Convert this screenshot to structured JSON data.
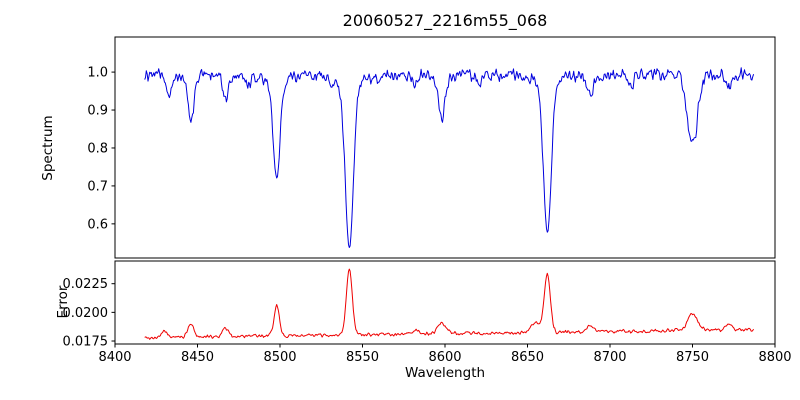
{
  "chart_data": [
    {
      "type": "line",
      "panel": "spectrum",
      "title": "20060527_2216m55_068",
      "ylabel": "Spectrum",
      "color": "#0000dd",
      "line_width": 1,
      "xlim": [
        8400,
        8800
      ],
      "ylim": [
        0.51,
        1.0925
      ],
      "yticks": [
        1.0,
        0.9,
        0.8,
        0.7,
        0.6
      ],
      "ytick_labels": [
        "1.0",
        "0.9",
        "0.8",
        "0.7",
        "0.6"
      ],
      "xticks": [
        8400,
        8450,
        8500,
        8550,
        8600,
        8650,
        8700,
        8750,
        8800
      ],
      "xtick_labels": [
        "8400",
        "8450",
        "8500",
        "8550",
        "8600",
        "8650",
        "8700",
        "8750",
        "8800"
      ],
      "grid": false,
      "legend": "none",
      "x_start": 8418,
      "x_end": 8787,
      "x_step": 0.5,
      "continuum": 0.993,
      "noise_amplitude": 0.02,
      "noise_seed": 12,
      "absorption_lines": [
        {
          "center": 8433,
          "depth": 0.05,
          "width": 1.5
        },
        {
          "center": 8446,
          "depth": 0.115,
          "width": 1.8
        },
        {
          "center": 8467,
          "depth": 0.06,
          "width": 1.8
        },
        {
          "center": 8481,
          "depth": 0.028,
          "width": 1.4
        },
        {
          "center": 8498,
          "depth": 0.26,
          "width": 2.0
        },
        {
          "center": 8498,
          "depth": 0.02,
          "width": 6.0
        },
        {
          "center": 8542,
          "depth": 0.43,
          "width": 2.4
        },
        {
          "center": 8542,
          "depth": 0.03,
          "width": 9.0
        },
        {
          "center": 8582,
          "depth": 0.03,
          "width": 1.5
        },
        {
          "center": 8598,
          "depth": 0.112,
          "width": 2.2
        },
        {
          "center": 8621,
          "depth": 0.028,
          "width": 1.5
        },
        {
          "center": 8662,
          "depth": 0.39,
          "width": 2.3
        },
        {
          "center": 8662,
          "depth": 0.025,
          "width": 9.0
        },
        {
          "center": 8688,
          "depth": 0.05,
          "width": 1.8
        },
        {
          "center": 8713,
          "depth": 0.025,
          "width": 1.5
        },
        {
          "center": 8750,
          "depth": 0.185,
          "width": 3.0
        },
        {
          "center": 8772,
          "depth": 0.035,
          "width": 1.6
        }
      ]
    },
    {
      "type": "line",
      "panel": "error",
      "ylabel": "Error",
      "xlabel": "Wavelength",
      "color": "#ee0000",
      "line_width": 1,
      "xlim": [
        8400,
        8800
      ],
      "ylim": [
        0.01724,
        0.02448
      ],
      "yticks": [
        0.0225,
        0.02,
        0.0175
      ],
      "ytick_labels": [
        "0.0225",
        "0.0200",
        "0.0175"
      ],
      "xticks": [
        8400,
        8450,
        8500,
        8550,
        8600,
        8650,
        8700,
        8750,
        8800
      ],
      "xtick_labels": [
        "8400",
        "8450",
        "8500",
        "8550",
        "8600",
        "8650",
        "8700",
        "8750",
        "8800"
      ],
      "grid": false,
      "legend": "none",
      "x_start": 8418,
      "x_end": 8787,
      "x_step": 0.5,
      "baseline_start": 0.0178,
      "baseline_slope": 1.9e-06,
      "noise_amplitude": 0.00018,
      "noise_seed": 99,
      "emission_peaks": [
        {
          "center": 8430,
          "height": 0.0005,
          "width": 1.8
        },
        {
          "center": 8446,
          "height": 0.0011,
          "width": 1.8
        },
        {
          "center": 8467,
          "height": 0.0007,
          "width": 1.8
        },
        {
          "center": 8498,
          "height": 0.0027,
          "width": 1.6
        },
        {
          "center": 8542,
          "height": 0.0058,
          "width": 1.8
        },
        {
          "center": 8583,
          "height": 0.0003,
          "width": 2.0
        },
        {
          "center": 8598,
          "height": 0.0009,
          "width": 2.5
        },
        {
          "center": 8655,
          "height": 0.0008,
          "width": 3.0
        },
        {
          "center": 8662,
          "height": 0.005,
          "width": 1.8
        },
        {
          "center": 8688,
          "height": 0.0006,
          "width": 2.0
        },
        {
          "center": 8750,
          "height": 0.0014,
          "width": 3.0
        },
        {
          "center": 8772,
          "height": 0.0004,
          "width": 2.0
        }
      ]
    }
  ]
}
